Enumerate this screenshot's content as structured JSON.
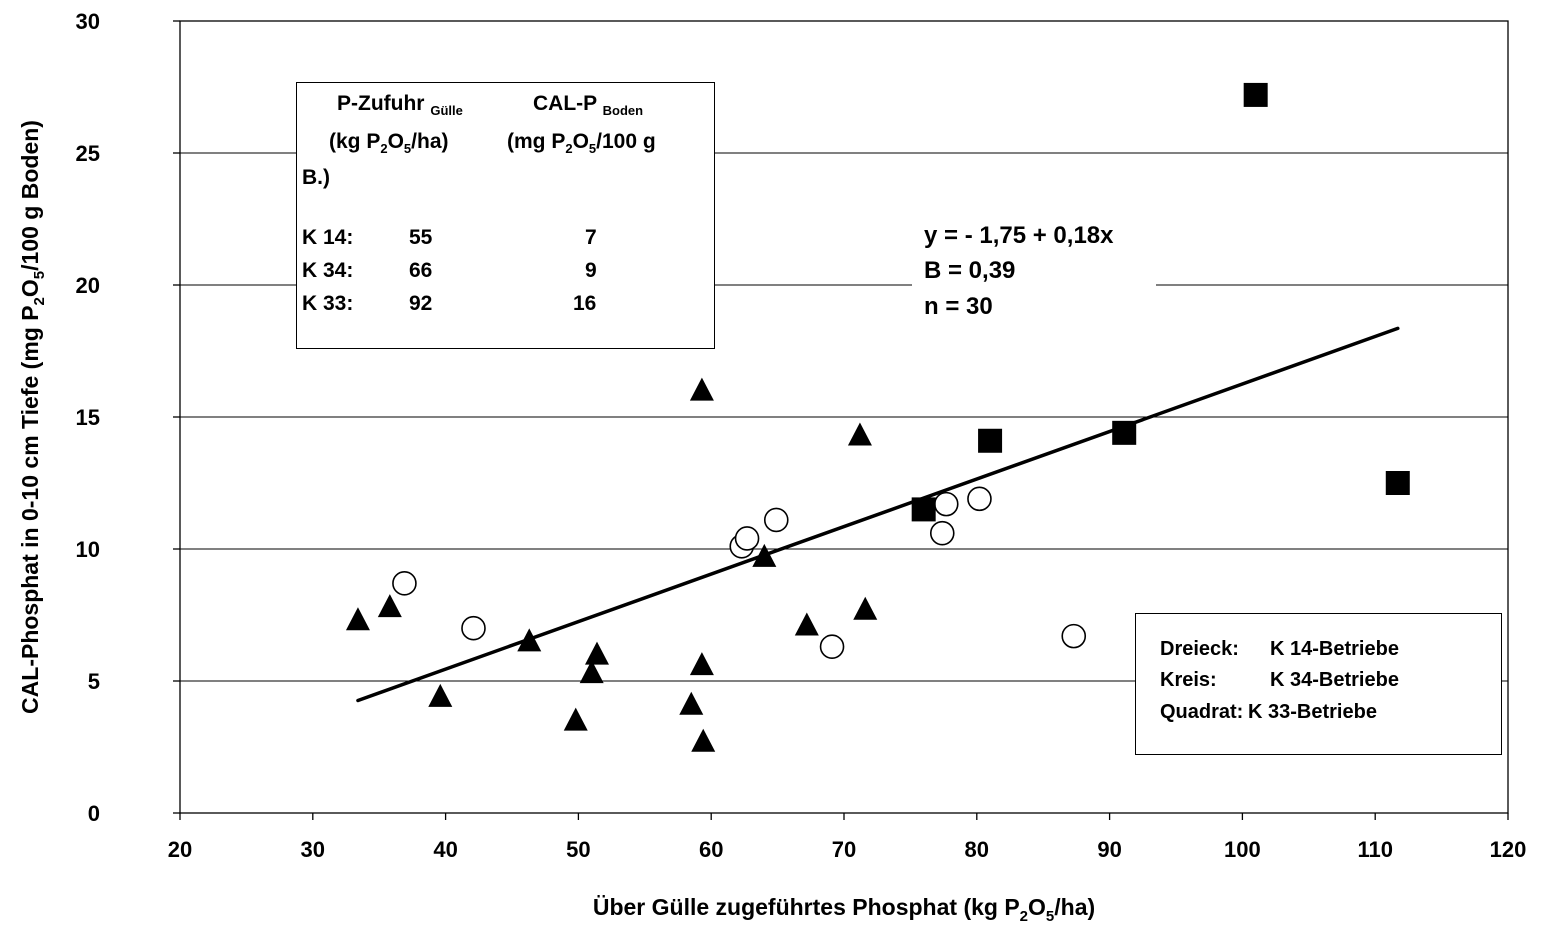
{
  "chart_data": {
    "type": "scatter",
    "xlabel": "Über Gülle zugeführtes Phosphat (kg P₂O₅/ha)",
    "ylabel": "CAL-Phosphat in 0-10 cm Tiefe (mg P₂O₅/100 g Boden)",
    "xlim": [
      20,
      120
    ],
    "ylim": [
      0,
      30
    ],
    "x_ticks": [
      "20",
      "30",
      "40",
      "50",
      "60",
      "70",
      "80",
      "90",
      "100",
      "110",
      "120"
    ],
    "y_ticks": [
      "0",
      "5",
      "10",
      "15",
      "20",
      "25",
      "30"
    ],
    "grid": "horizontal",
    "series": [
      {
        "name": "Dreieck",
        "marker": "triangle",
        "points": [
          {
            "x": 33.4,
            "y": 7.3
          },
          {
            "x": 35.8,
            "y": 7.8
          },
          {
            "x": 39.6,
            "y": 4.4
          },
          {
            "x": 46.3,
            "y": 6.5
          },
          {
            "x": 49.8,
            "y": 3.5
          },
          {
            "x": 51.0,
            "y": 5.3
          },
          {
            "x": 51.4,
            "y": 6.0
          },
          {
            "x": 58.5,
            "y": 4.1
          },
          {
            "x": 59.3,
            "y": 5.6
          },
          {
            "x": 59.3,
            "y": 16.0
          },
          {
            "x": 59.4,
            "y": 2.7
          },
          {
            "x": 64.0,
            "y": 9.7
          },
          {
            "x": 67.2,
            "y": 7.1
          },
          {
            "x": 71.2,
            "y": 14.3
          },
          {
            "x": 71.6,
            "y": 7.7
          }
        ]
      },
      {
        "name": "Kreis",
        "marker": "circle",
        "points": [
          {
            "x": 36.9,
            "y": 8.7
          },
          {
            "x": 42.1,
            "y": 7.0
          },
          {
            "x": 62.3,
            "y": 10.1
          },
          {
            "x": 62.7,
            "y": 10.4
          },
          {
            "x": 64.9,
            "y": 11.1
          },
          {
            "x": 69.1,
            "y": 6.3
          },
          {
            "x": 77.4,
            "y": 10.6
          },
          {
            "x": 77.7,
            "y": 11.7
          },
          {
            "x": 80.2,
            "y": 11.9
          },
          {
            "x": 87.3,
            "y": 6.7
          }
        ]
      },
      {
        "name": "Quadrat",
        "marker": "square",
        "points": [
          {
            "x": 76.0,
            "y": 11.5
          },
          {
            "x": 81.0,
            "y": 14.1
          },
          {
            "x": 91.1,
            "y": 14.4
          },
          {
            "x": 101.0,
            "y": 27.2
          },
          {
            "x": 111.7,
            "y": 12.5
          }
        ]
      }
    ],
    "trendline": {
      "intercept": -1.75,
      "slope": 0.18,
      "x_start": 33.4,
      "x_end": 111.7
    },
    "annotations": {
      "equation": [
        "y = - 1,75 + 0,18x",
        "B = 0,39",
        "n = 30"
      ]
    },
    "table_box": {
      "header_left": "P-Zufuhr",
      "header_left_sub": "Gülle",
      "unit_left_a": "(kg P",
      "unit_left_b": "2",
      "unit_left_c": "O",
      "unit_left_d": "5",
      "unit_left_e": "/ha)",
      "header_right": "CAL-P",
      "header_right_sub": "Boden",
      "unit_right_a": "(mg P",
      "unit_right_b": "2",
      "unit_right_c": "O",
      "unit_right_d": "5",
      "unit_right_e": "/100 g",
      "unit_right_wrap": "B.)",
      "rows": [
        {
          "label": "K 14:",
          "zufuhr": "55",
          "calp": "7"
        },
        {
          "label": "K 34:",
          "zufuhr": "66",
          "calp": "9"
        },
        {
          "label": "K 33:",
          "zufuhr": "92",
          "calp": "16"
        }
      ]
    },
    "legend": {
      "placement": "bottom-right",
      "entries": [
        {
          "key": "Dreieck:",
          "value": "K 14-Betriebe"
        },
        {
          "key": "Kreis:",
          "value": "K 34-Betriebe"
        },
        {
          "key": "Quadrat:",
          "value": "K 33-Betriebe"
        }
      ]
    }
  }
}
